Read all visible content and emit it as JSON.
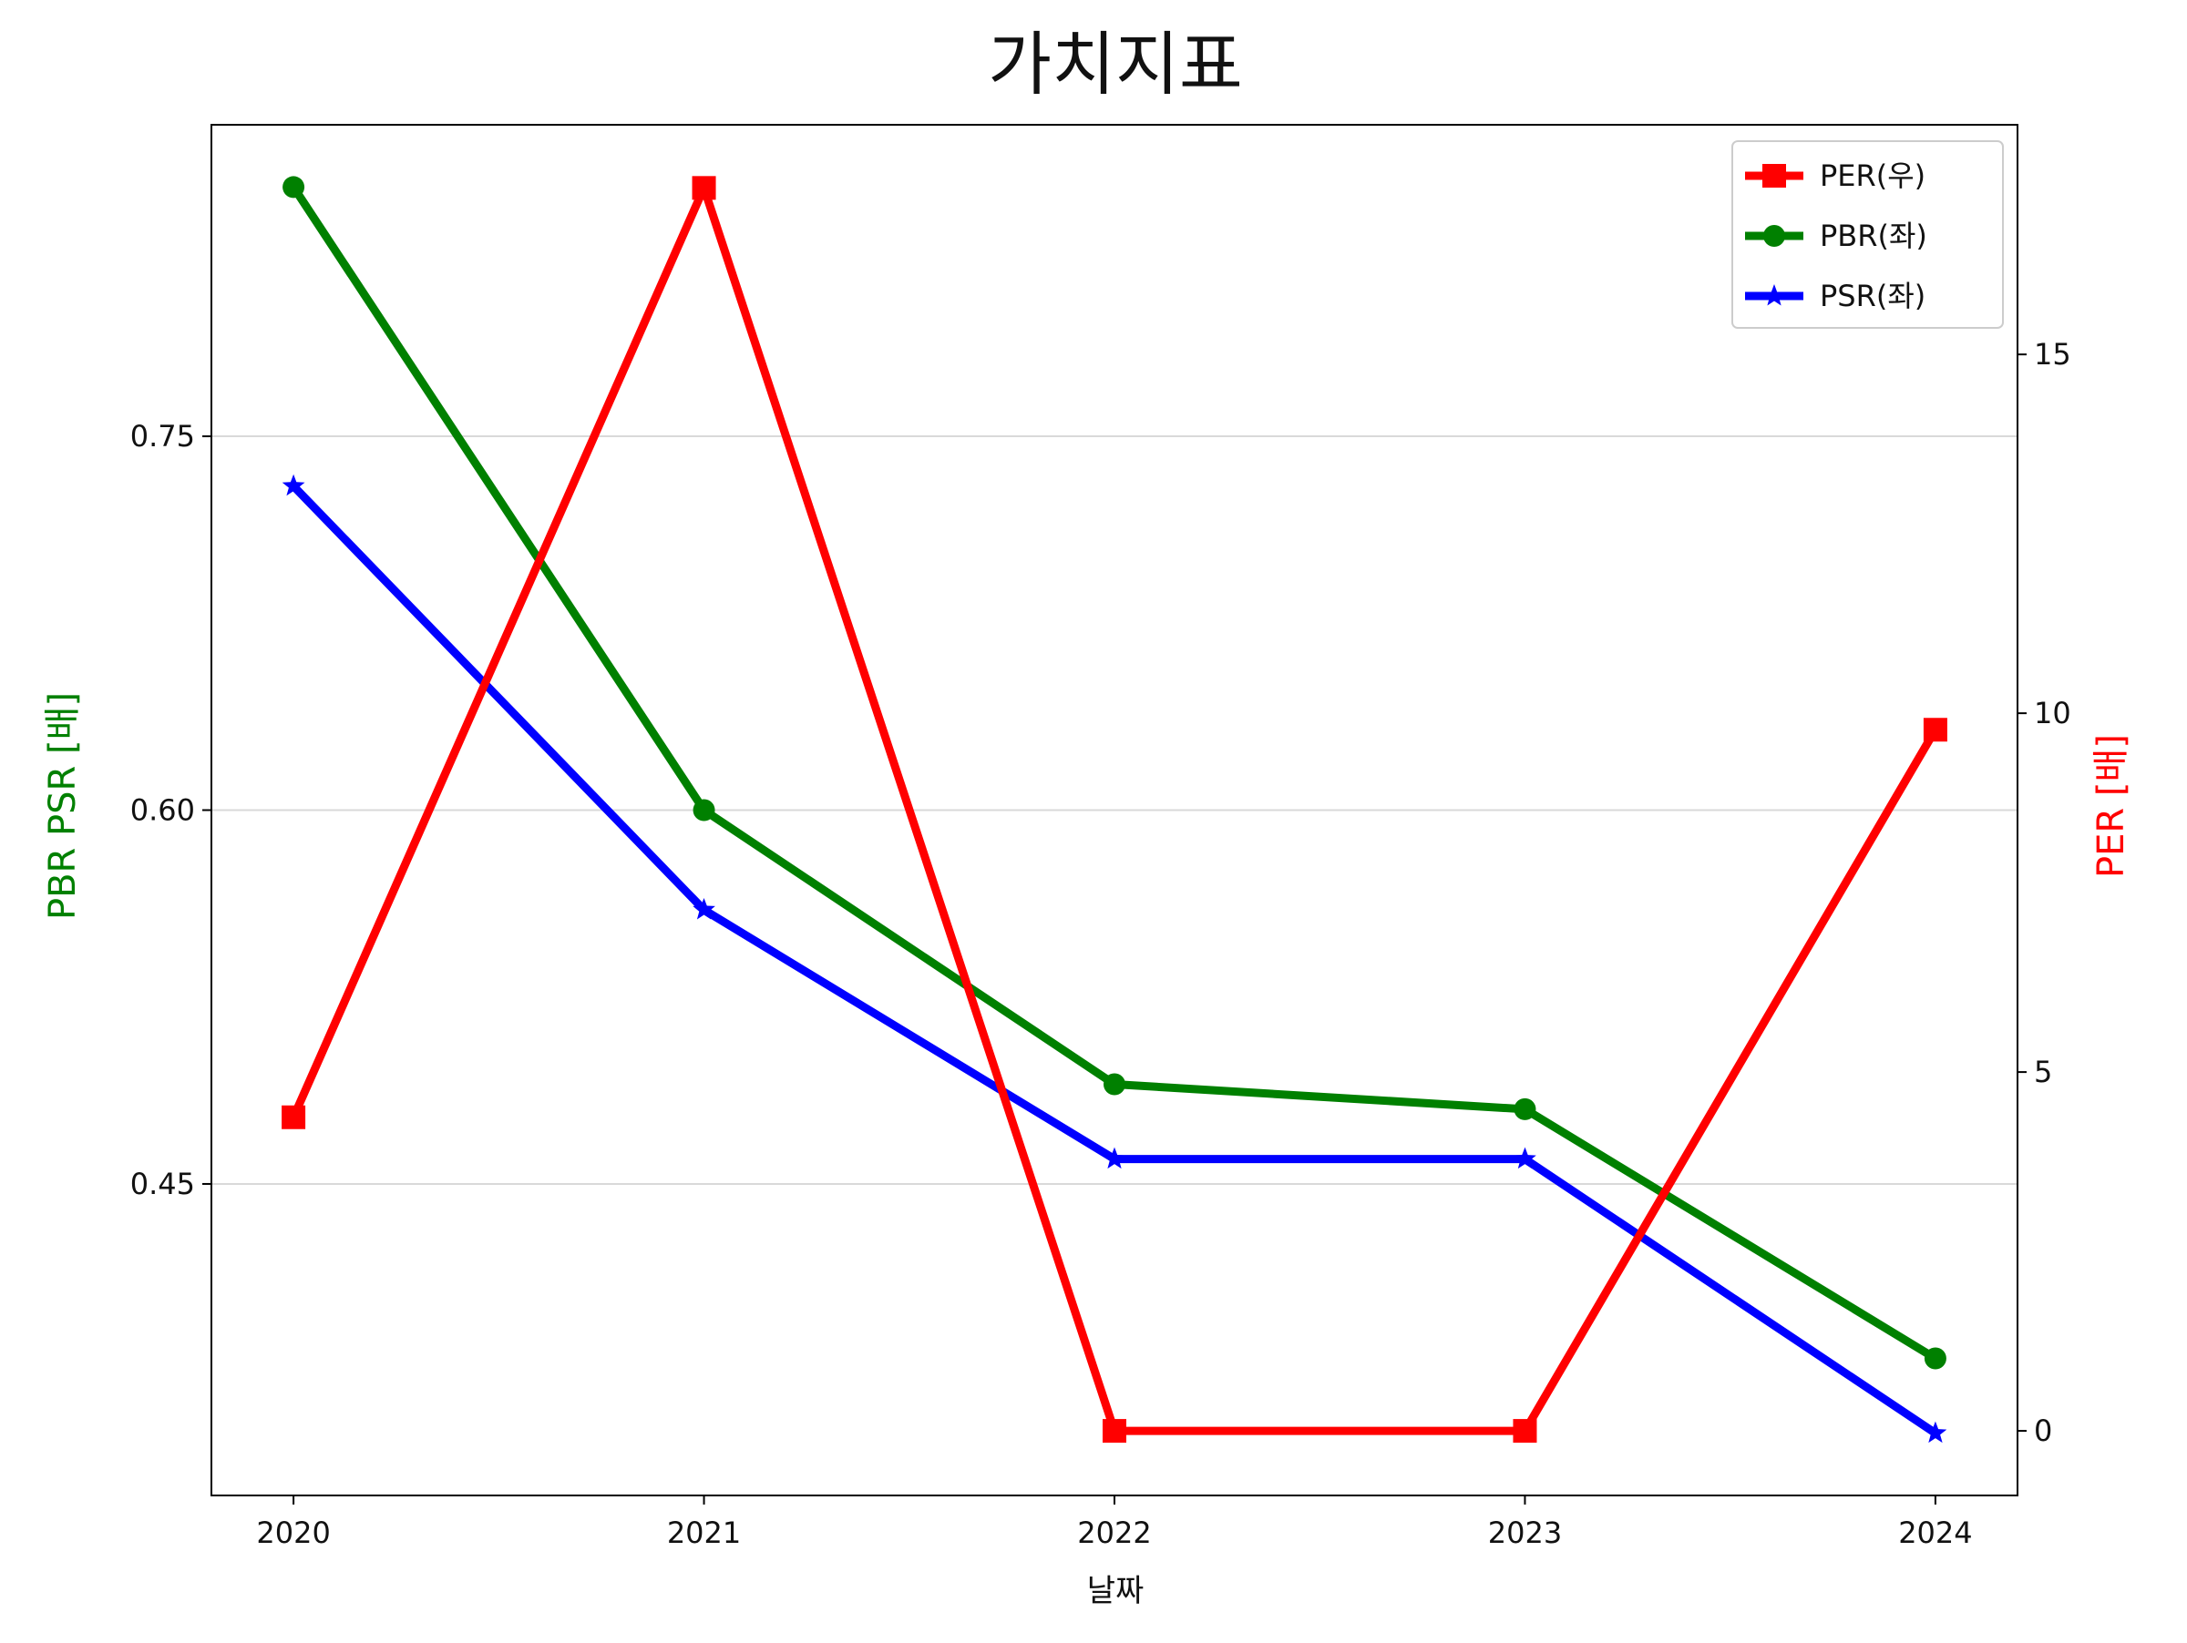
{
  "chart_data": {
    "type": "line",
    "title": "가치지표",
    "xlabel": "날짜",
    "ylabel_left": "PBR PSR [배]",
    "ylabel_right": "PER [배]",
    "categories": [
      "2020",
      "2021",
      "2022",
      "2023",
      "2024"
    ],
    "left_axis": {
      "ylim": [
        0.325,
        0.875
      ],
      "ticks": [
        0.45,
        0.6,
        0.75
      ],
      "tick_labels": [
        "0.45",
        "0.60",
        "0.75"
      ],
      "color": "#008000",
      "grid": true
    },
    "right_axis": {
      "ylim": [
        -0.9,
        18.2
      ],
      "ticks": [
        0,
        5,
        10,
        15
      ],
      "tick_labels": [
        "0",
        "5",
        "10",
        "15"
      ],
      "color": "#ff0000"
    },
    "series": [
      {
        "name": "PER(우)",
        "axis": "right",
        "color": "#ff0000",
        "marker": "square",
        "values": [
          4.37,
          17.32,
          0.0,
          0.0,
          9.77
        ]
      },
      {
        "name": "PBR(좌)",
        "axis": "left",
        "color": "#008000",
        "marker": "circle",
        "values": [
          0.85,
          0.6,
          0.49,
          0.48,
          0.38
        ]
      },
      {
        "name": "PSR(좌)",
        "axis": "left",
        "color": "#0000ff",
        "marker": "star",
        "values": [
          0.73,
          0.56,
          0.46,
          0.46,
          0.35
        ]
      }
    ],
    "legend": {
      "position": "top-right"
    }
  }
}
